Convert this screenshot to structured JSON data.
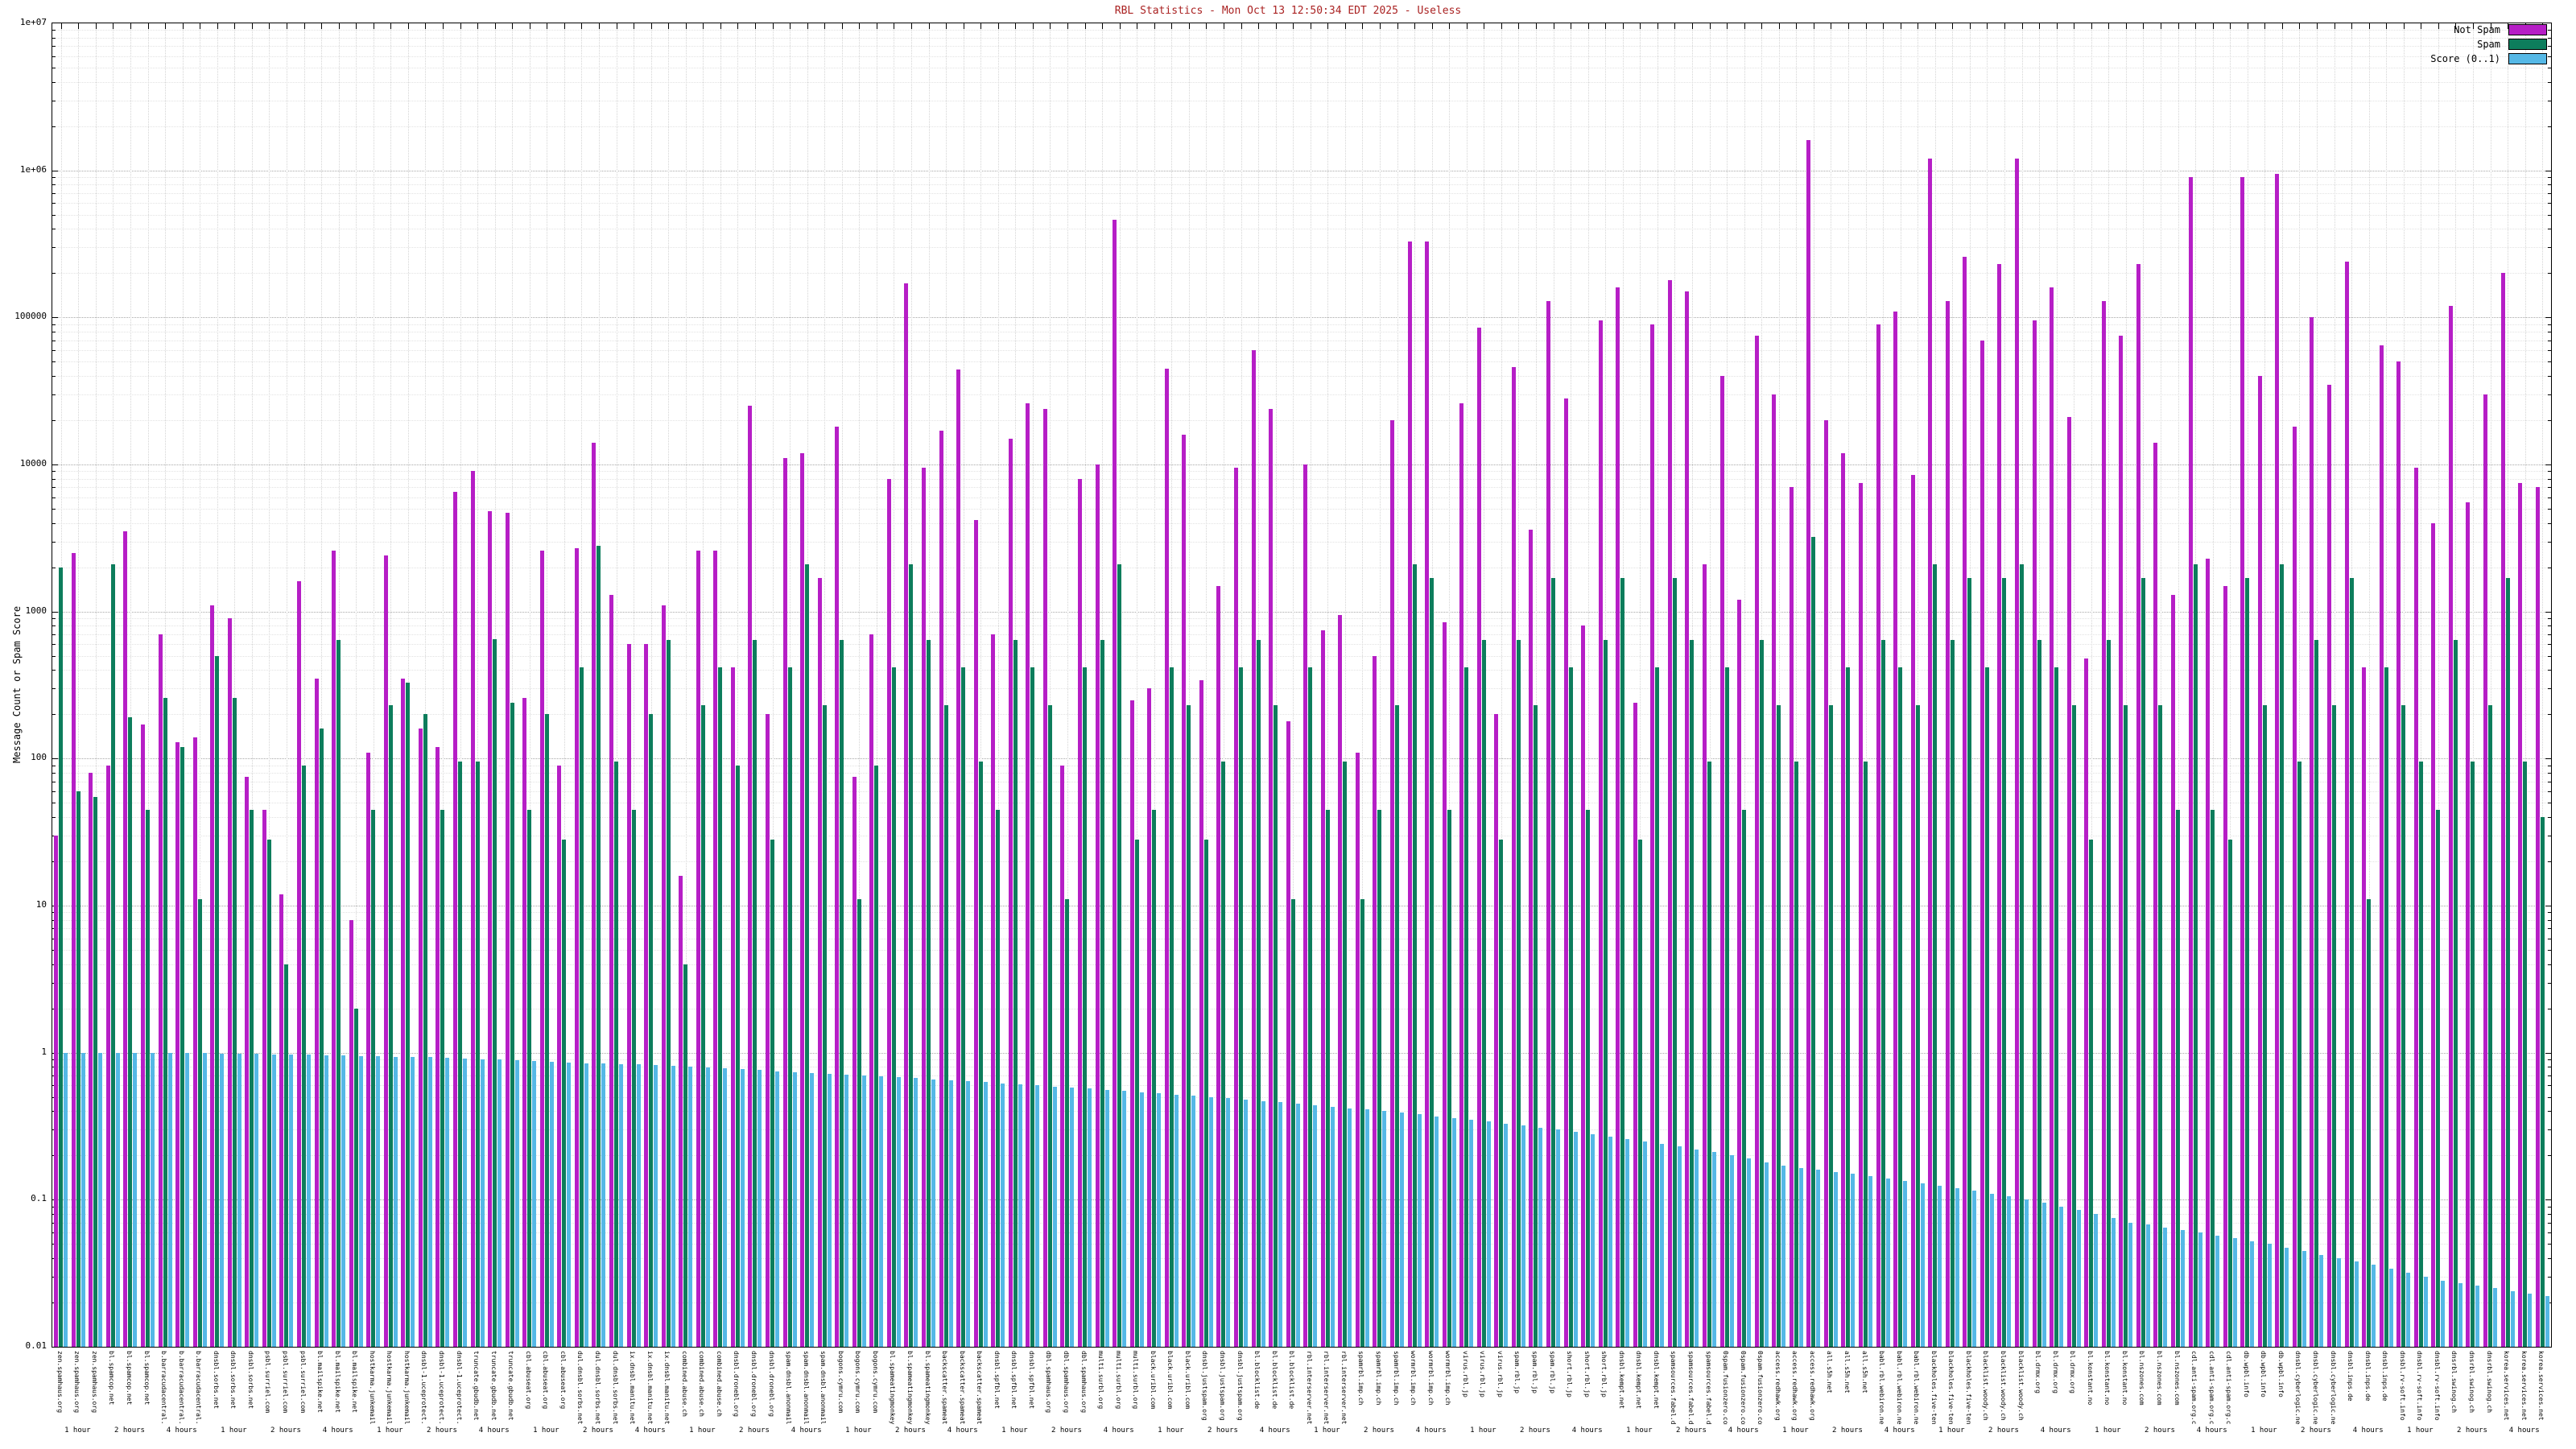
{
  "title": "RBL Statistics - Mon Oct 13 12:50:34 EDT 2025 - Useless",
  "title_color": "#aa2222",
  "axes": {
    "ylabel": "Message Count or Spam Score",
    "yticks": [
      "0.01",
      "0.1",
      "1",
      "10",
      "100",
      "1000",
      "10000",
      "100000",
      "1e+06",
      "1e+07"
    ]
  },
  "chart_data": {
    "type": "bar",
    "scale": "log",
    "title": "RBL Statistics - Mon Oct 13 12:50:34 EDT 2025 - Useless",
    "xlabel": "",
    "ylabel": "Message Count or Spam Score",
    "ylim": [
      0.01,
      10000000
    ],
    "grid": true,
    "legend_position": "top-right",
    "names_repeat": 3,
    "interval_labels": [
      "1 hour",
      "2 hours",
      "4 hours"
    ],
    "names": [
      "zen.spamhaus.org",
      "bl.spamcop.net",
      "b.barracudacentral.org",
      "dnsbl.sorbs.net",
      "psbl.surriel.com",
      "bl.mailspike.net",
      "hostkarma.junkemailfilter.com",
      "dnsbl-1.uceprotect.net",
      "truncate.gbudb.net",
      "cbl.abuseat.org",
      "dul.dnsbl.sorbs.net",
      "ix.dnsbl.manitu.net",
      "combined.abuse.ch",
      "dnsbl.dronebl.org",
      "spam.dnsbl.anonmails.de",
      "bogons.cymru.com",
      "bl.spameatingmonkey.net",
      "backscatter.spameatingmonkey.net",
      "dnsbl.spfbl.net",
      "dbl.spamhaus.org",
      "multi.surbl.org",
      "black.uribl.com",
      "dnsbl.justspam.org",
      "bl.blocklist.de",
      "rbl.interserver.net",
      "spamrbl.imp.ch",
      "wormrbl.imp.ch",
      "virus.rbl.jp",
      "spam.rbl.jp",
      "short.rbl.jp",
      "dnsbl.kempt.net",
      "spamsources.fabel.dk",
      "0spam.fusionzero.com",
      "access.redhawk.org",
      "all.s5h.net",
      "babl.rbl.webiron.net",
      "blackholes.five-ten-sg.com",
      "blacklist.woody.ch",
      "bl.drmx.org",
      "bl.konstant.no",
      "bl.nszones.com",
      "cdl.anti-spam.org.cn",
      "db.wpbl.info",
      "dnsbl.cyberlogic.net",
      "dnsbl.inps.de",
      "dnsbl.rv-soft.info",
      "dnsrbl.swinog.ch",
      "korea.services.net"
    ],
    "series": [
      {
        "name": "Not Spam",
        "color": "#b61ec6",
        "values": [
          30,
          2500,
          80,
          90,
          3500,
          170,
          700,
          130,
          140,
          1100,
          900,
          75,
          45,
          12,
          1600,
          350,
          2600,
          8,
          110,
          2400,
          350,
          160,
          120,
          6500,
          9000,
          4800,
          4700,
          260,
          2600,
          90,
          2700,
          14000,
          1300,
          600,
          600,
          1100,
          16,
          2600,
          2600,
          420,
          25000,
          200,
          11000,
          12000,
          1700,
          18000,
          75,
          700,
          8000,
          170000,
          9500,
          17000,
          44000,
          4200,
          700,
          15000,
          26000,
          24000,
          90,
          8000,
          10000,
          460000,
          250,
          300,
          45000,
          16000,
          340,
          1500,
          9500,
          60000,
          24000,
          180,
          10000,
          750,
          950,
          110,
          500,
          20000,
          330000,
          330000,
          850,
          26000,
          85000,
          200,
          46000,
          3600,
          130000,
          28000,
          800,
          95000,
          160000,
          240,
          90000,
          180000,
          150000,
          2100,
          40000,
          1200,
          75000,
          30000,
          7000,
          1600000,
          20000,
          12000,
          7500,
          90000,
          110000,
          8500,
          1200000,
          130000,
          260000,
          70000,
          230000,
          1200000,
          95000,
          160000,
          21000,
          480,
          130000,
          75000,
          230000,
          14000,
          1300,
          900000,
          2300,
          1500,
          900000,
          40000,
          950000,
          18000,
          100000,
          35000,
          240000,
          420,
          65000,
          50000,
          9500,
          4000,
          120000,
          5500,
          30000,
          200000,
          7500,
          7000
        ]
      },
      {
        "name": "Spam",
        "color": "#0d7d5c",
        "values": [
          2000,
          60,
          55,
          2100,
          190,
          45,
          260,
          120,
          11,
          500,
          260,
          45,
          28,
          4,
          90,
          160,
          640,
          2,
          45,
          230,
          330,
          200,
          45,
          95,
          95,
          650,
          240,
          45,
          200,
          28,
          420,
          2800,
          95,
          45,
          200,
          640,
          4,
          230,
          420,
          90,
          640,
          28,
          420,
          2100,
          230,
          640,
          11,
          90,
          420,
          2100,
          640,
          230,
          420,
          95,
          45,
          640,
          420,
          230,
          11,
          420,
          640,
          2100,
          28,
          45,
          420,
          230,
          28,
          95,
          420,
          640,
          230,
          11,
          420,
          45,
          95,
          11,
          45,
          230,
          2100,
          1700,
          45,
          420,
          640,
          28,
          640,
          230,
          1700,
          420,
          45,
          640,
          1700,
          28,
          420,
          1700,
          640,
          95,
          420,
          45,
          640,
          230,
          95,
          3200,
          230,
          420,
          95,
          640,
          420,
          230,
          2100,
          640,
          1700,
          420,
          1700,
          2100,
          640,
          420,
          230,
          28,
          640,
          230,
          1700,
          230,
          45,
          2100,
          45,
          28,
          1700,
          230,
          2100,
          95,
          640,
          230,
          1700,
          11,
          420,
          230,
          95,
          45,
          640,
          95,
          230,
          1700,
          95,
          40
        ]
      },
      {
        "name": "Score (0..1)",
        "color": "#55b8e6",
        "values": [
          1.0,
          1.0,
          1.0,
          1.0,
          1.0,
          0.99,
          0.99,
          0.99,
          0.99,
          0.98,
          0.98,
          0.98,
          0.97,
          0.97,
          0.97,
          0.96,
          0.96,
          0.95,
          0.95,
          0.94,
          0.93,
          0.93,
          0.92,
          0.91,
          0.9,
          0.9,
          0.89,
          0.88,
          0.87,
          0.86,
          0.85,
          0.85,
          0.84,
          0.83,
          0.82,
          0.81,
          0.8,
          0.79,
          0.78,
          0.77,
          0.76,
          0.75,
          0.74,
          0.73,
          0.72,
          0.71,
          0.7,
          0.69,
          0.68,
          0.67,
          0.66,
          0.65,
          0.64,
          0.63,
          0.62,
          0.61,
          0.6,
          0.59,
          0.58,
          0.57,
          0.56,
          0.55,
          0.54,
          0.53,
          0.52,
          0.51,
          0.5,
          0.49,
          0.48,
          0.47,
          0.46,
          0.45,
          0.44,
          0.43,
          0.42,
          0.41,
          0.4,
          0.39,
          0.38,
          0.37,
          0.36,
          0.35,
          0.34,
          0.33,
          0.32,
          0.31,
          0.3,
          0.29,
          0.28,
          0.27,
          0.26,
          0.25,
          0.24,
          0.23,
          0.22,
          0.21,
          0.2,
          0.19,
          0.18,
          0.17,
          0.165,
          0.16,
          0.155,
          0.15,
          0.145,
          0.14,
          0.135,
          0.13,
          0.125,
          0.12,
          0.115,
          0.11,
          0.105,
          0.1,
          0.095,
          0.09,
          0.085,
          0.08,
          0.075,
          0.07,
          0.068,
          0.065,
          0.062,
          0.06,
          0.057,
          0.055,
          0.052,
          0.05,
          0.047,
          0.045,
          0.042,
          0.04,
          0.038,
          0.036,
          0.034,
          0.032,
          0.03,
          0.028,
          0.027,
          0.026,
          0.025,
          0.024,
          0.023,
          0.022
        ]
      }
    ]
  }
}
